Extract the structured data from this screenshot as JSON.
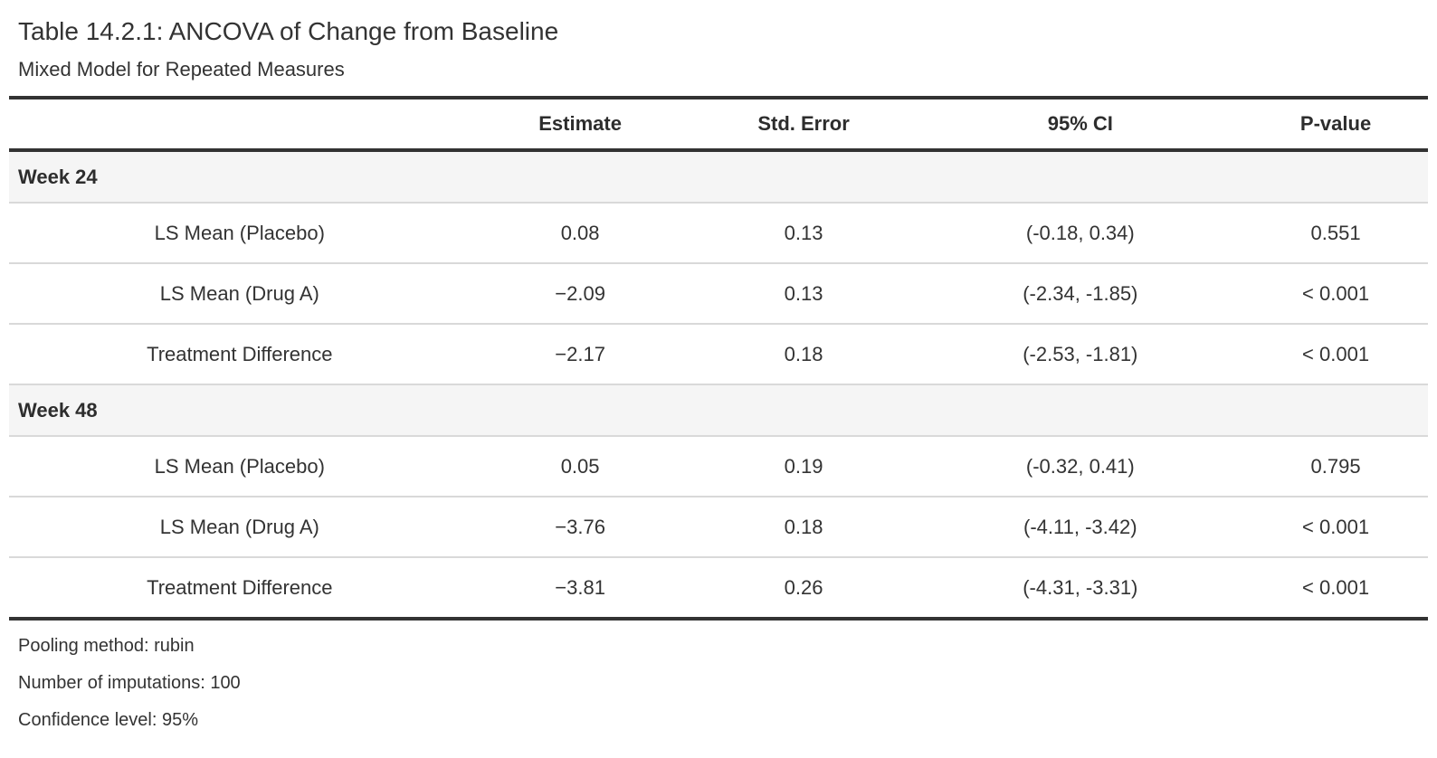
{
  "table": {
    "title": "Table 14.2.1: ANCOVA of Change from Baseline",
    "subtitle": "Mixed Model for Repeated Measures",
    "columns": {
      "stub": "",
      "estimate": "Estimate",
      "std_error": "Std. Error",
      "ci": "95% CI",
      "p_value": "P-value"
    },
    "groups": [
      {
        "label": "Week 24",
        "rows": [
          {
            "label": "LS Mean (Placebo)",
            "estimate": "0.08",
            "std_error": "0.13",
            "ci": "(-0.18, 0.34)",
            "p_value": "0.551"
          },
          {
            "label": "LS Mean (Drug A)",
            "estimate": "−2.09",
            "std_error": "0.13",
            "ci": "(-2.34, -1.85)",
            "p_value": "< 0.001"
          },
          {
            "label": "Treatment Difference",
            "estimate": "−2.17",
            "std_error": "0.18",
            "ci": "(-2.53, -1.81)",
            "p_value": "< 0.001"
          }
        ]
      },
      {
        "label": "Week 48",
        "rows": [
          {
            "label": "LS Mean (Placebo)",
            "estimate": "0.05",
            "std_error": "0.19",
            "ci": "(-0.32, 0.41)",
            "p_value": "0.795"
          },
          {
            "label": "LS Mean (Drug A)",
            "estimate": "−3.76",
            "std_error": "0.18",
            "ci": "(-4.11, -3.42)",
            "p_value": "< 0.001"
          },
          {
            "label": "Treatment Difference",
            "estimate": "−3.81",
            "std_error": "0.26",
            "ci": "(-4.31, -3.31)",
            "p_value": "< 0.001"
          }
        ]
      }
    ],
    "footnotes": [
      "Pooling method: rubin",
      "Number of imputations: 100",
      "Confidence level: 95%"
    ]
  },
  "colors": {
    "rule_dark": "#333333",
    "rule_light": "#d9d9d9",
    "group_row_bg": "#f5f5f5",
    "text": "#333333"
  }
}
